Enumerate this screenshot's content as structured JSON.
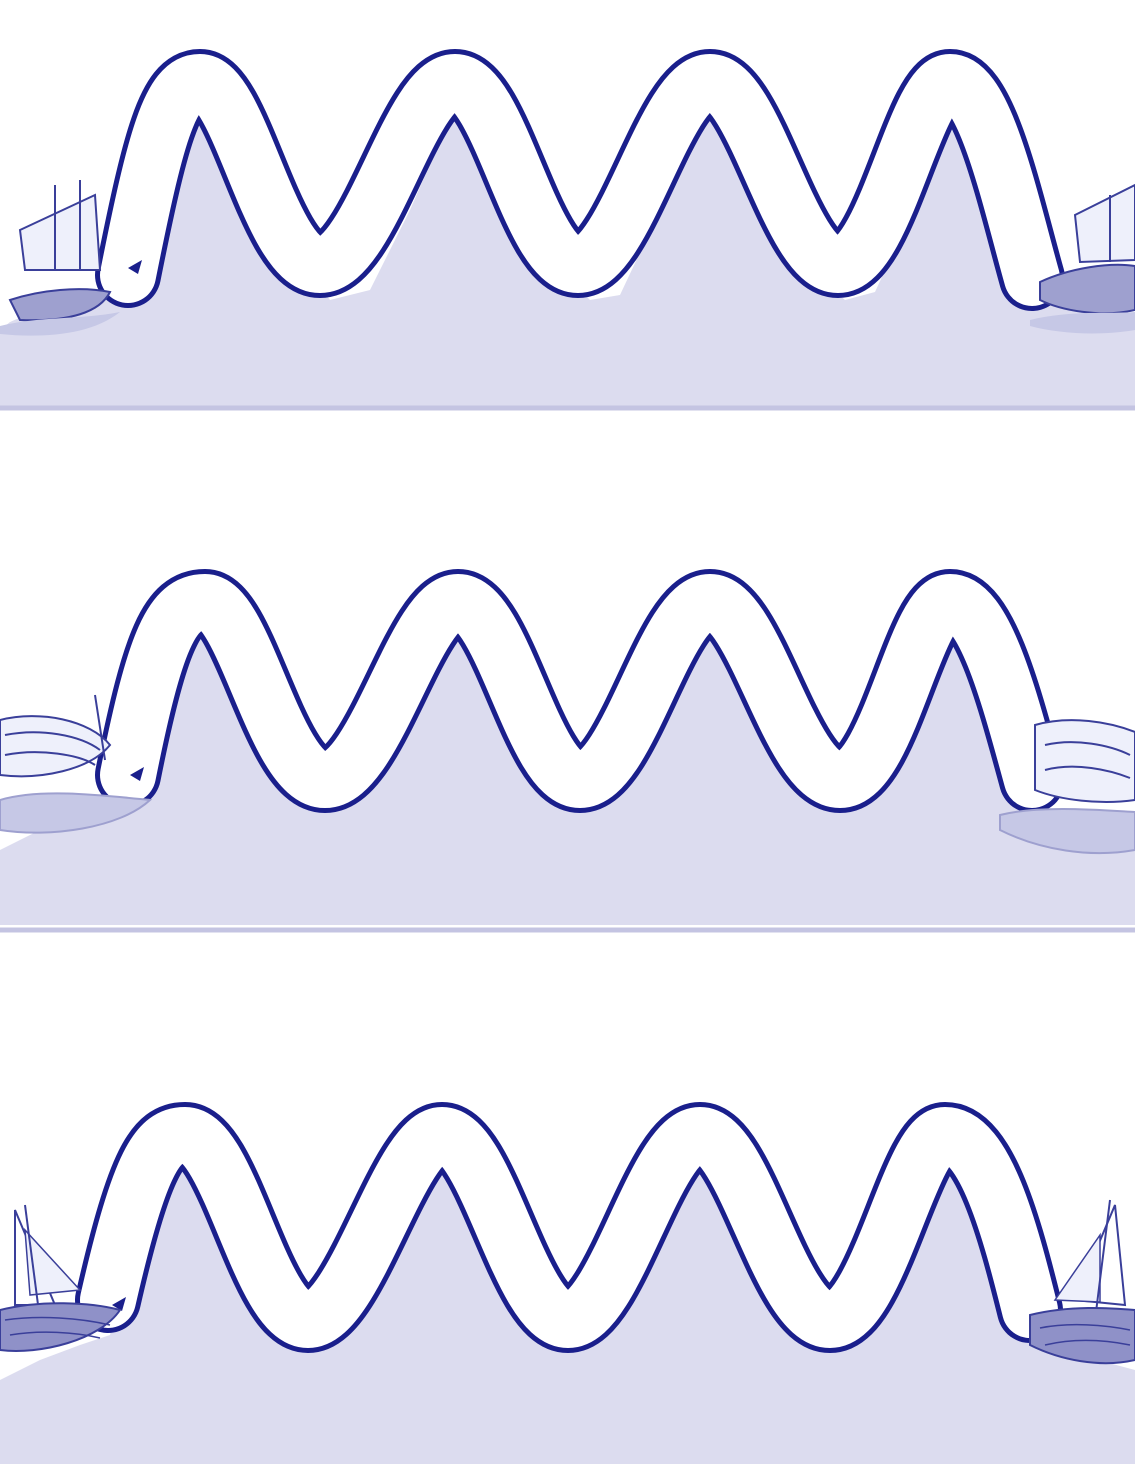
{
  "worksheet": {
    "type": "wave tracing worksheet",
    "text": "",
    "colors": {
      "paper": "#ffffff",
      "sea": "#dcdcef",
      "sea_line": "#c4c4e2",
      "track_outline": "#1a1f8c",
      "track_fill": "#ffffff",
      "boat_ink": "#3a3f9a",
      "boat_shade": "#9ea0cf"
    },
    "rows": [
      {
        "name": "row-1",
        "wave_cycles": 4,
        "boats": [
          "ship",
          "ship"
        ],
        "start_marker": "arrow"
      },
      {
        "name": "row-2",
        "wave_cycles": 4,
        "boats": [
          "wreck",
          "wreck"
        ],
        "start_marker": "arrow"
      },
      {
        "name": "row-3",
        "wave_cycles": 4,
        "boats": [
          "sailboat",
          "sailboat"
        ],
        "start_marker": "arrow"
      }
    ]
  }
}
